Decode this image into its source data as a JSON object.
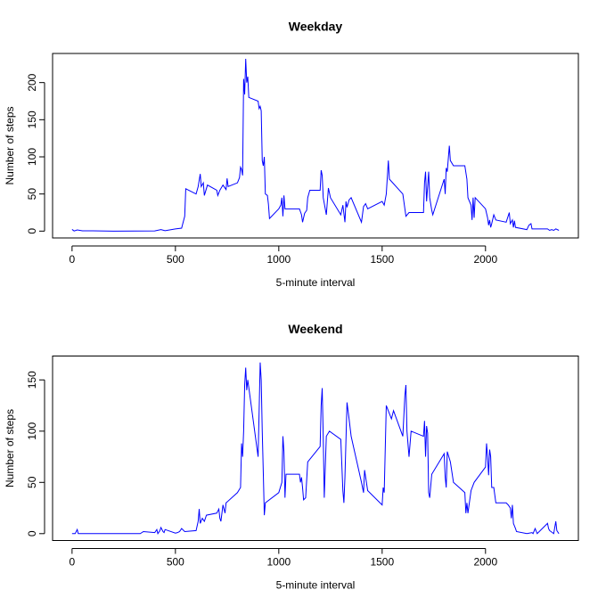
{
  "chart_data": [
    {
      "type": "line",
      "title": "Weekday",
      "x_label": "5-minute interval",
      "y_label": "Number of steps",
      "color": "#0000ff",
      "x": [
        0,
        10,
        25,
        50,
        100,
        200,
        300,
        400,
        430,
        450,
        500,
        530,
        545,
        550,
        600,
        610,
        620,
        625,
        635,
        640,
        655,
        700,
        705,
        715,
        730,
        745,
        750,
        755,
        800,
        810,
        815,
        820,
        825,
        830,
        835,
        840,
        845,
        850,
        855,
        900,
        905,
        910,
        915,
        920,
        925,
        930,
        935,
        945,
        950,
        955,
        1000,
        1010,
        1015,
        1020,
        1025,
        1030,
        1100,
        1110,
        1115,
        1125,
        1135,
        1140,
        1150,
        1200,
        1205,
        1210,
        1215,
        1230,
        1240,
        1250,
        1300,
        1310,
        1320,
        1325,
        1330,
        1340,
        1350,
        1400,
        1410,
        1420,
        1430,
        1500,
        1510,
        1520,
        1530,
        1535,
        1600,
        1610,
        1615,
        1630,
        1700,
        1705,
        1710,
        1715,
        1725,
        1730,
        1740,
        1745,
        1800,
        1805,
        1810,
        1815,
        1825,
        1830,
        1845,
        1900,
        1910,
        1915,
        1930,
        1935,
        1940,
        1945,
        1950,
        2000,
        2010,
        2015,
        2020,
        2025,
        2030,
        2040,
        2050,
        2100,
        2115,
        2120,
        2130,
        2135,
        2140,
        2145,
        2200,
        2210,
        2220,
        2225,
        2230,
        2300,
        2310,
        2320,
        2330,
        2340,
        2355
      ],
      "values": [
        2.3,
        0.2,
        1.6,
        0.4,
        0.4,
        0,
        0.1,
        0.2,
        2,
        0.5,
        3,
        4,
        20,
        57,
        50,
        60,
        77,
        60,
        65,
        48,
        62,
        55,
        48,
        55,
        62,
        56,
        71,
        60,
        65,
        72,
        86,
        83,
        75,
        205,
        184,
        232,
        200,
        208,
        180,
        175,
        165,
        168,
        162,
        95,
        88,
        100,
        50,
        48,
        36,
        17,
        30,
        35,
        45,
        20,
        48,
        30,
        30,
        22,
        12,
        24,
        28,
        45,
        55,
        55,
        82,
        75,
        45,
        22,
        58,
        45,
        22,
        35,
        12,
        40,
        32,
        42,
        45,
        12,
        33,
        37,
        30,
        40,
        35,
        50,
        95,
        70,
        50,
        30,
        20,
        25,
        25,
        65,
        80,
        40,
        80,
        45,
        28,
        22,
        70,
        50,
        85,
        80,
        115,
        95,
        88,
        88,
        70,
        45,
        35,
        15,
        45,
        18,
        45,
        30,
        18,
        8,
        15,
        5,
        10,
        22,
        15,
        12,
        25,
        10,
        15,
        5,
        14,
        5,
        2,
        8,
        10,
        3,
        3,
        3,
        1,
        2,
        1,
        3,
        1
      ],
      "xlim": [
        -94.2,
        2449.2
      ],
      "ylim": [
        -9.2,
        239.2
      ],
      "xticks": [
        0,
        500,
        1000,
        1500,
        2000
      ],
      "yticks": [
        0,
        50,
        100,
        150,
        200
      ]
    },
    {
      "type": "line",
      "title": "Weekend",
      "x_label": "5-minute interval",
      "y_label": "Number of steps",
      "color": "#0000ff",
      "x": [
        0,
        15,
        25,
        30,
        100,
        300,
        330,
        345,
        400,
        410,
        415,
        425,
        430,
        440,
        445,
        450,
        500,
        510,
        520,
        530,
        545,
        600,
        610,
        615,
        620,
        630,
        640,
        650,
        700,
        710,
        715,
        720,
        730,
        740,
        745,
        800,
        815,
        820,
        825,
        830,
        835,
        840,
        845,
        850,
        900,
        905,
        910,
        915,
        920,
        925,
        930,
        935,
        1000,
        1015,
        1020,
        1025,
        1030,
        1035,
        1100,
        1105,
        1110,
        1115,
        1120,
        1130,
        1140,
        1200,
        1205,
        1210,
        1215,
        1220,
        1230,
        1245,
        1300,
        1310,
        1315,
        1320,
        1330,
        1340,
        1350,
        1400,
        1410,
        1415,
        1430,
        1500,
        1505,
        1510,
        1520,
        1545,
        1555,
        1600,
        1610,
        1615,
        1620,
        1630,
        1640,
        1700,
        1705,
        1710,
        1715,
        1720,
        1725,
        1730,
        1740,
        1800,
        1805,
        1810,
        1815,
        1830,
        1845,
        1900,
        1905,
        1910,
        1915,
        1930,
        1945,
        2000,
        2005,
        2010,
        2015,
        2020,
        2025,
        2030,
        2040,
        2050,
        2100,
        2110,
        2120,
        2125,
        2130,
        2135,
        2145,
        2150,
        2200,
        2225,
        2230,
        2240,
        2250,
        2300,
        2305,
        2310,
        2330,
        2340,
        2345,
        2355
      ],
      "values": [
        0,
        0,
        4,
        0,
        0,
        0,
        0,
        2,
        1,
        4,
        0,
        3,
        6,
        2,
        1,
        4,
        0.5,
        1,
        2,
        5,
        2,
        3,
        12,
        24,
        10,
        15,
        12,
        18,
        20,
        24,
        15,
        12,
        28,
        20,
        30,
        40,
        45,
        88,
        75,
        100,
        145,
        162,
        140,
        150,
        75,
        120,
        167,
        150,
        100,
        60,
        18,
        30,
        40,
        50,
        95,
        80,
        35,
        58,
        58,
        50,
        55,
        45,
        33,
        35,
        70,
        85,
        125,
        142,
        95,
        35,
        95,
        100,
        92,
        42,
        30,
        55,
        128,
        112,
        95,
        50,
        40,
        62,
        42,
        28,
        45,
        40,
        125,
        112,
        120,
        95,
        135,
        145,
        100,
        75,
        100,
        95,
        110,
        75,
        105,
        98,
        40,
        35,
        58,
        78,
        55,
        45,
        80,
        70,
        50,
        40,
        20,
        30,
        20,
        42,
        50,
        65,
        88,
        75,
        57,
        82,
        75,
        45,
        45,
        30,
        30,
        28,
        25,
        15,
        28,
        10,
        5,
        2,
        0,
        1,
        0,
        5,
        0,
        10,
        5,
        3,
        0,
        12,
        3,
        0
      ],
      "xlim": [
        -94.2,
        2449.2
      ],
      "ylim": [
        -6.7,
        173.3
      ],
      "xticks": [
        0,
        500,
        1000,
        1500,
        2000
      ],
      "yticks": [
        0,
        50,
        100,
        150
      ]
    }
  ]
}
